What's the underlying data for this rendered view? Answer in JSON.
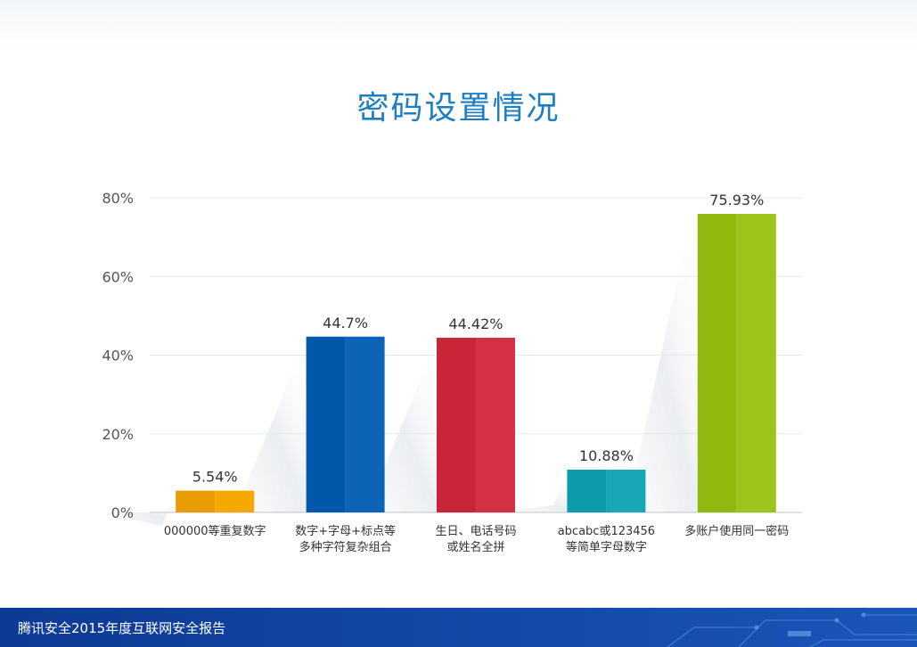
{
  "title": "密码设置情况",
  "footer": {
    "text": "腾讯安全2015年度互联网安全报告"
  },
  "chart_data": {
    "type": "bar",
    "title": "密码设置情况",
    "categories": [
      [
        "000000等重复数字"
      ],
      [
        "数字+字母+标点等",
        "多种字符复杂组合"
      ],
      [
        "生日、电话号码",
        "或姓名全拼"
      ],
      [
        "abcabc或123456",
        "等简单字母数字"
      ],
      [
        "多账户使用同一密码"
      ]
    ],
    "values": [
      5.54,
      44.7,
      44.42,
      10.88,
      75.93
    ],
    "value_labels": [
      "5.54%",
      "44.7%",
      "44.42%",
      "10.88%",
      "75.93%"
    ],
    "colors": [
      "#f5a800",
      "#0d63b5",
      "#d43145",
      "#17a7b6",
      "#9dc41a"
    ],
    "ylim": [
      0,
      80
    ],
    "yticks": [
      0,
      20,
      40,
      60,
      80
    ],
    "ytick_labels": [
      "0%",
      "20%",
      "40%",
      "60%",
      "80%"
    ],
    "xlabel": "",
    "ylabel": "",
    "grid": true,
    "legend": "none"
  }
}
